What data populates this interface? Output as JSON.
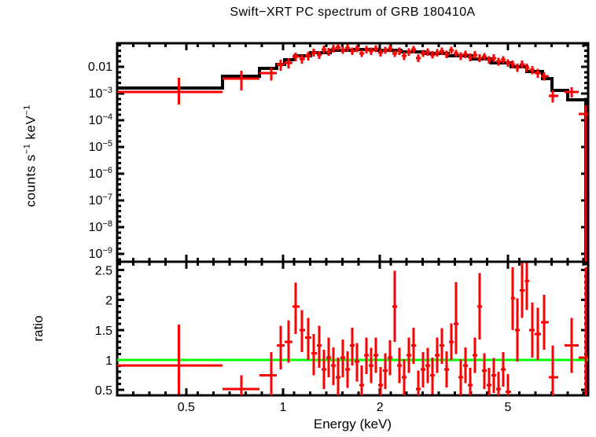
{
  "colors": {
    "data": "#ff0000",
    "model": "#000000",
    "reference_line": "#00ff00",
    "axes": "#000000",
    "background": "#ffffff"
  },
  "chart_data": {
    "type": "scatter",
    "title": "Swift−XRT PC spectrum of GRB 180410A",
    "legend": "none",
    "grid": "off",
    "x_axis": {
      "label": "Energy (keV)",
      "scale": "log",
      "range": [
        0.305,
        8.88
      ],
      "ticks": [
        {
          "value": 0.5,
          "label": "0.5"
        },
        {
          "value": 1,
          "label": "1"
        },
        {
          "value": 2,
          "label": "2"
        },
        {
          "value": 5,
          "label": "5"
        }
      ]
    },
    "energy_bins": [
      [
        0.305,
        0.475,
        0.648
      ],
      [
        0.648,
        0.742,
        0.845
      ],
      [
        0.845,
        0.919,
        0.956
      ],
      [
        0.956,
        0.983,
        1.011
      ],
      [
        1.011,
        1.04,
        1.07
      ],
      [
        1.07,
        1.094,
        1.125
      ],
      [
        1.125,
        1.145,
        1.171
      ],
      [
        1.171,
        1.197,
        1.225
      ],
      [
        1.225,
        1.245,
        1.274
      ],
      [
        1.274,
        1.296,
        1.318
      ],
      [
        1.318,
        1.34,
        1.363
      ],
      [
        1.363,
        1.386,
        1.41
      ],
      [
        1.41,
        1.434,
        1.459
      ],
      [
        1.459,
        1.483,
        1.508
      ],
      [
        1.508,
        1.534,
        1.561
      ],
      [
        1.561,
        1.587,
        1.614
      ],
      [
        1.614,
        1.642,
        1.669
      ],
      [
        1.669,
        1.698,
        1.727
      ],
      [
        1.727,
        1.755,
        1.786
      ],
      [
        1.786,
        1.816,
        1.848
      ],
      [
        1.848,
        1.879,
        1.91
      ],
      [
        1.91,
        1.944,
        1.977
      ],
      [
        1.977,
        2.01,
        2.045
      ],
      [
        2.045,
        2.078,
        2.113
      ],
      [
        2.113,
        2.152,
        2.188
      ],
      [
        2.188,
        2.223,
        2.264
      ],
      [
        2.264,
        2.301,
        2.339
      ],
      [
        2.339,
        2.382,
        2.421
      ],
      [
        2.421,
        2.461,
        2.506
      ],
      [
        2.506,
        2.547,
        2.589
      ],
      [
        2.589,
        2.636,
        2.679
      ],
      [
        2.679,
        2.723,
        2.772
      ],
      [
        2.772,
        2.818,
        2.864
      ],
      [
        2.864,
        2.917,
        2.965
      ],
      [
        2.965,
        3.013,
        3.069
      ],
      [
        3.069,
        3.119,
        3.17
      ],
      [
        3.17,
        3.228,
        3.281
      ],
      [
        3.281,
        3.334,
        3.396
      ],
      [
        3.396,
        3.451,
        3.508
      ],
      [
        3.508,
        3.573,
        3.631
      ],
      [
        3.631,
        3.69,
        3.758
      ],
      [
        3.758,
        3.819,
        3.882
      ],
      [
        3.882,
        3.954,
        4.018
      ],
      [
        4.018,
        4.083,
        4.159
      ],
      [
        4.159,
        4.227,
        4.295
      ],
      [
        4.295,
        4.375,
        4.446
      ],
      [
        4.446,
        4.519,
        4.603
      ],
      [
        4.603,
        4.677,
        4.753
      ],
      [
        4.753,
        4.842,
        4.92
      ],
      [
        4.92,
        5.0,
        5.117
      ],
      [
        5.117,
        5.175,
        5.263
      ],
      [
        5.263,
        5.357,
        5.445
      ],
      [
        5.445,
        5.534,
        5.637
      ],
      [
        5.637,
        5.728,
        5.821
      ],
      [
        5.821,
        5.957,
        6.053
      ],
      [
        6.053,
        6.194,
        6.337
      ],
      [
        6.337,
        6.486,
        6.699
      ],
      [
        6.699,
        6.899,
        7.178
      ],
      [
        7.5,
        7.889,
        8.3
      ],
      [
        8.3,
        8.737,
        8.88
      ]
    ],
    "spectrum": {
      "ylabel": "counts s^-1 keV^-1",
      "scale": "log",
      "range": [
        5.1e-10,
        0.076
      ],
      "yticks": [
        {
          "value": 0.01,
          "label": "0.01"
        },
        {
          "value": 0.001,
          "label": "10^-3"
        },
        {
          "value": 0.0001,
          "label": "10^-4"
        },
        {
          "value": 1e-05,
          "label": "10^-5"
        },
        {
          "value": 1e-06,
          "label": "10^-6"
        },
        {
          "value": 1e-07,
          "label": "10^-7"
        },
        {
          "value": 1e-08,
          "label": "10^-8"
        },
        {
          "value": 1e-09,
          "label": "10^-9"
        }
      ],
      "counts": [
        [
          0.00039,
          0.00115,
          0.0039
        ],
        [
          0.0013,
          0.0036,
          0.0071
        ],
        [
          0.003,
          0.0058,
          0.0094
        ],
        [
          0.0071,
          0.0122,
          0.0184
        ],
        [
          0.0087,
          0.014,
          0.0211
        ],
        [
          0.0161,
          0.0241,
          0.0338
        ],
        [
          0.0131,
          0.0197,
          0.0276
        ],
        [
          0.0172,
          0.0258,
          0.0362
        ],
        [
          0.0241,
          0.0338,
          0.0474
        ],
        [
          0.0197,
          0.0276,
          0.0387
        ],
        [
          0.0316,
          0.0444,
          0.0622
        ],
        [
          0.0258,
          0.0362,
          0.0508
        ],
        [
          0.0338,
          0.0474,
          0.0666
        ],
        [
          0.04,
          0.0543,
          0.072
        ],
        [
          0.03,
          0.0415,
          0.056
        ],
        [
          0.037,
          0.0508,
          0.068
        ],
        [
          0.028,
          0.0387,
          0.052
        ],
        [
          0.035,
          0.0474,
          0.064
        ],
        [
          0.023,
          0.0316,
          0.043
        ],
        [
          0.032,
          0.0444,
          0.06
        ],
        [
          0.028,
          0.0387,
          0.052
        ],
        [
          0.035,
          0.0474,
          0.064
        ],
        [
          0.024,
          0.0338,
          0.046
        ],
        [
          0.03,
          0.0415,
          0.056
        ],
        [
          0.035,
          0.0474,
          0.064
        ],
        [
          0.023,
          0.0316,
          0.043
        ],
        [
          0.028,
          0.0387,
          0.052
        ],
        [
          0.018,
          0.0258,
          0.036
        ],
        [
          0.026,
          0.0362,
          0.049
        ],
        [
          0.032,
          0.0444,
          0.06
        ],
        [
          0.015,
          0.0211,
          0.029
        ],
        [
          0.023,
          0.0316,
          0.043
        ],
        [
          0.026,
          0.0362,
          0.049
        ],
        [
          0.02,
          0.0276,
          0.038
        ],
        [
          0.024,
          0.0338,
          0.046
        ],
        [
          0.028,
          0.0387,
          0.052
        ],
        [
          0.021,
          0.0296,
          0.04
        ],
        [
          0.03,
          0.0415,
          0.056
        ],
        [
          0.023,
          0.0316,
          0.043
        ],
        [
          0.018,
          0.0258,
          0.035
        ],
        [
          0.021,
          0.0296,
          0.04
        ],
        [
          0.016,
          0.0225,
          0.031
        ],
        [
          0.02,
          0.0276,
          0.038
        ],
        [
          0.015,
          0.0211,
          0.029
        ],
        [
          0.017,
          0.0241,
          0.033
        ],
        [
          0.013,
          0.0184,
          0.025
        ],
        [
          0.015,
          0.0211,
          0.029
        ],
        [
          0.011,
          0.0161,
          0.022
        ],
        [
          0.013,
          0.0184,
          0.025
        ],
        [
          0.0099,
          0.014,
          0.019
        ],
        [
          0.0086,
          0.0122,
          0.017
        ],
        [
          0.0064,
          0.0094,
          0.013
        ],
        [
          0.0086,
          0.0122,
          0.017
        ],
        [
          0.0064,
          0.0094,
          0.013
        ],
        [
          0.0052,
          0.0076,
          0.0106
        ],
        [
          0.0039,
          0.0058,
          0.0083
        ],
        [
          0.003,
          0.0044,
          0.0063
        ],
        [
          0.00046,
          0.00082,
          0.0013
        ],
        [
          0.0007,
          0.00115,
          0.0017
        ],
        [
          5.1e-10,
          0.00017,
          0.00036
        ]
      ],
      "model": {
        "edges": [
          0.305,
          0.648,
          0.845,
          0.956,
          1.011,
          1.088,
          1.218,
          1.402,
          1.66,
          1.965,
          2.326,
          2.754,
          3.26,
          3.86,
          4.43,
          5.11,
          5.73,
          6.412,
          6.855,
          7.674,
          8.737
        ],
        "levels": [
          0.00161,
          0.00444,
          0.00874,
          0.0122,
          0.0184,
          0.0258,
          0.0338,
          0.0415,
          0.0444,
          0.0415,
          0.0362,
          0.0316,
          0.0258,
          0.0197,
          0.014,
          0.01,
          0.00666,
          0.0036,
          0.0013,
          0.00058
        ]
      }
    },
    "ratio": {
      "ylabel": "ratio",
      "scale": "linear",
      "range": [
        0.408,
        2.64
      ],
      "reference": 1,
      "yticks": [
        {
          "value": 0.5,
          "label": "0.5"
        },
        {
          "value": 1,
          "label": "1"
        },
        {
          "value": 1.5,
          "label": "1.5"
        },
        {
          "value": 2,
          "label": "2"
        },
        {
          "value": 2.5,
          "label": "2.5"
        }
      ],
      "values": [
        [
          0.43,
          0.91,
          1.59
        ],
        [
          0.41,
          0.51,
          0.74
        ],
        [
          0.41,
          0.74,
          1.13
        ],
        [
          0.84,
          1.24,
          1.57
        ],
        [
          0.95,
          1.3,
          1.66
        ],
        [
          1.43,
          1.89,
          2.29
        ],
        [
          1.13,
          1.5,
          1.83
        ],
        [
          1.0,
          1.37,
          1.7
        ],
        [
          0.74,
          1.11,
          1.43
        ],
        [
          0.87,
          1.24,
          1.57
        ],
        [
          0.51,
          0.84,
          1.17
        ],
        [
          0.71,
          1.04,
          1.37
        ],
        [
          0.58,
          0.91,
          1.21
        ],
        [
          0.41,
          0.71,
          1.04
        ],
        [
          0.71,
          1.04,
          1.34
        ],
        [
          0.53,
          0.84,
          1.14
        ],
        [
          0.91,
          1.24,
          1.54
        ],
        [
          0.64,
          0.97,
          1.28
        ],
        [
          0.41,
          0.58,
          0.91
        ],
        [
          0.76,
          1.08,
          1.37
        ],
        [
          0.61,
          0.91,
          1.2
        ],
        [
          0.78,
          1.08,
          1.37
        ],
        [
          0.41,
          0.58,
          0.88
        ],
        [
          0.51,
          0.82,
          1.11
        ],
        [
          0.74,
          1.04,
          1.33
        ],
        [
          1.3,
          1.89,
          2.49
        ],
        [
          0.61,
          0.91,
          1.2
        ],
        [
          0.41,
          0.71,
          1.01
        ],
        [
          0.78,
          1.08,
          1.37
        ],
        [
          0.93,
          1.24,
          1.54
        ],
        [
          0.41,
          0.51,
          0.82
        ],
        [
          0.54,
          0.84,
          1.13
        ],
        [
          0.61,
          0.91,
          1.2
        ],
        [
          0.43,
          0.74,
          1.04
        ],
        [
          0.78,
          1.08,
          1.37
        ],
        [
          0.93,
          1.24,
          1.53
        ],
        [
          0.54,
          0.84,
          1.14
        ],
        [
          1.0,
          1.3,
          1.61
        ],
        [
          1.1,
          1.6,
          2.3
        ],
        [
          0.41,
          0.71,
          1.01
        ],
        [
          0.61,
          0.91,
          1.21
        ],
        [
          0.41,
          0.58,
          0.87
        ],
        [
          0.78,
          1.08,
          1.37
        ],
        [
          1.34,
          1.89,
          2.45
        ],
        [
          0.51,
          0.82,
          1.11
        ],
        [
          0.41,
          0.58,
          0.87
        ],
        [
          0.45,
          0.74,
          1.03
        ],
        [
          0.41,
          0.51,
          0.8
        ],
        [
          0.55,
          0.84,
          1.13
        ],
        [
          0.41,
          0.47,
          0.76
        ],
        [
          1.5,
          2.03,
          2.55
        ],
        [
          0.97,
          1.5,
          2.03
        ],
        [
          1.7,
          2.16,
          2.62
        ],
        [
          1.83,
          2.32,
          2.62
        ],
        [
          1.04,
          1.5,
          1.96
        ],
        [
          1.0,
          1.43,
          1.87
        ],
        [
          1.17,
          1.63,
          2.09
        ],
        [
          0.41,
          0.71,
          1.24
        ],
        [
          0.78,
          1.24,
          1.7
        ],
        [
          0.41,
          1.04,
          2.55
        ]
      ]
    }
  }
}
